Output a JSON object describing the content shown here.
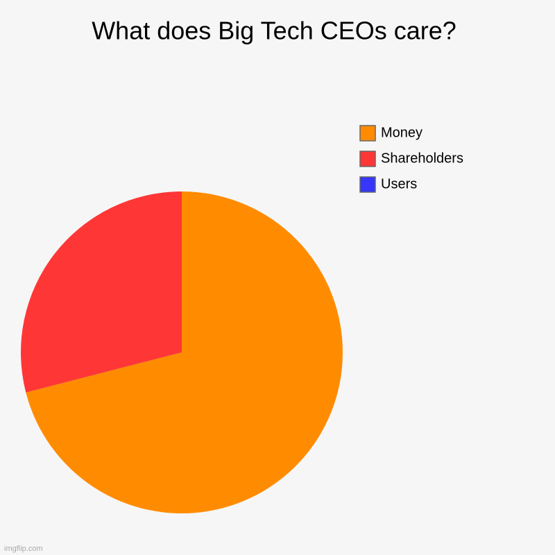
{
  "chart_data": {
    "type": "pie",
    "title": "What does Big Tech CEOs care?",
    "series": [
      {
        "name": "Money",
        "color": "#ff8c00",
        "values": [
          71
        ]
      },
      {
        "name": "Shareholders",
        "color": "#ff3636",
        "values": [
          29
        ]
      },
      {
        "name": "Users",
        "color": "#3636ff",
        "values": [
          0
        ]
      }
    ]
  },
  "watermark": "imgflip.com"
}
